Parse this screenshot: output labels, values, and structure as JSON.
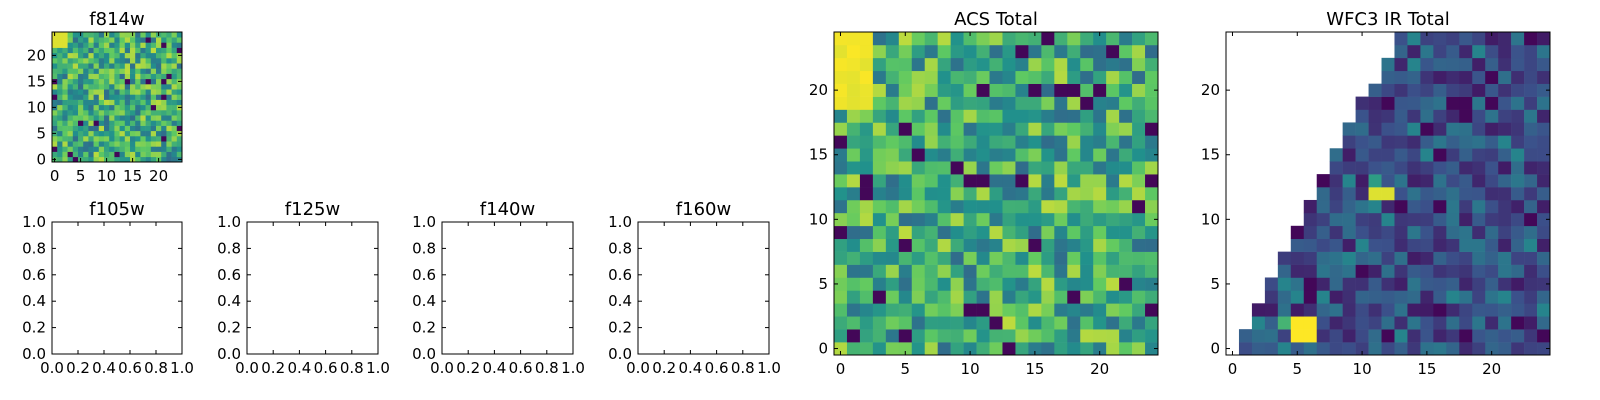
{
  "chart_data": [
    {
      "id": "f814w",
      "type": "heatmap",
      "title": "f814w",
      "xlim": [
        -0.5,
        24.5
      ],
      "ylim": [
        -0.5,
        24.5
      ],
      "xticks": [
        0,
        5,
        10,
        15,
        20
      ],
      "yticks": [
        0,
        5,
        10,
        15,
        20
      ],
      "grid_size": 25,
      "colormap": "viridis",
      "pattern": "noise"
    },
    {
      "id": "f105w",
      "type": "heatmap",
      "title": "f105w",
      "xlim": [
        0,
        1
      ],
      "ylim": [
        0,
        1
      ],
      "xticks": [
        "0.0",
        "0.2",
        "0.4",
        "0.6",
        "0.8",
        "1.0"
      ],
      "yticks": [
        "0.0",
        "0.2",
        "0.4",
        "0.6",
        "0.8",
        "1.0"
      ],
      "empty": true
    },
    {
      "id": "f125w",
      "type": "heatmap",
      "title": "f125w",
      "xlim": [
        0,
        1
      ],
      "ylim": [
        0,
        1
      ],
      "xticks": [
        "0.0",
        "0.2",
        "0.4",
        "0.6",
        "0.8",
        "1.0"
      ],
      "yticks": [
        "0.0",
        "0.2",
        "0.4",
        "0.6",
        "0.8",
        "1.0"
      ],
      "empty": true
    },
    {
      "id": "f140w",
      "type": "heatmap",
      "title": "f140w",
      "xlim": [
        0,
        1
      ],
      "ylim": [
        0,
        1
      ],
      "xticks": [
        "0.0",
        "0.2",
        "0.4",
        "0.6",
        "0.8",
        "1.0"
      ],
      "yticks": [
        "0.0",
        "0.2",
        "0.4",
        "0.6",
        "0.8",
        "1.0"
      ],
      "empty": true
    },
    {
      "id": "f160w",
      "type": "heatmap",
      "title": "f160w",
      "xlim": [
        0,
        1
      ],
      "ylim": [
        0,
        1
      ],
      "xticks": [
        "0.0",
        "0.2",
        "0.4",
        "0.6",
        "0.8",
        "1.0"
      ],
      "yticks": [
        "0.0",
        "0.2",
        "0.4",
        "0.6",
        "0.8",
        "1.0"
      ],
      "empty": true
    },
    {
      "id": "acs_total",
      "type": "heatmap",
      "title": "ACS Total",
      "xlim": [
        -0.5,
        24.5
      ],
      "ylim": [
        -0.5,
        24.5
      ],
      "xticks": [
        0,
        5,
        10,
        15,
        20
      ],
      "yticks": [
        0,
        5,
        10,
        15,
        20
      ],
      "grid_size": 25,
      "colormap": "viridis",
      "pattern": "noise"
    },
    {
      "id": "wfc3_ir_total",
      "type": "heatmap",
      "title": "WFC3 IR Total",
      "xlim": [
        -0.5,
        24.5
      ],
      "ylim": [
        -0.5,
        24.5
      ],
      "xticks": [
        0,
        5,
        10,
        15,
        20
      ],
      "yticks": [
        0,
        5,
        10,
        15,
        20
      ],
      "grid_size": 25,
      "colormap": "viridis",
      "pattern": "triangle",
      "bright_pixels": [
        {
          "x": 5,
          "y": 1,
          "v": 1.0
        },
        {
          "x": 6,
          "y": 1,
          "v": 1.0
        },
        {
          "x": 5,
          "y": 2,
          "v": 1.0
        },
        {
          "x": 6,
          "y": 2,
          "v": 1.0
        },
        {
          "x": 4,
          "y": 2,
          "v": 0.65
        },
        {
          "x": 11,
          "y": 12,
          "v": 0.95
        },
        {
          "x": 12,
          "y": 12,
          "v": 0.95
        },
        {
          "x": 11,
          "y": 13,
          "v": 0.55
        }
      ]
    }
  ],
  "colors": {
    "axis": "#000000",
    "background": "#ffffff",
    "colormap_stops": [
      "#440154",
      "#3b528b",
      "#21918c",
      "#5ec962",
      "#fde725"
    ]
  }
}
